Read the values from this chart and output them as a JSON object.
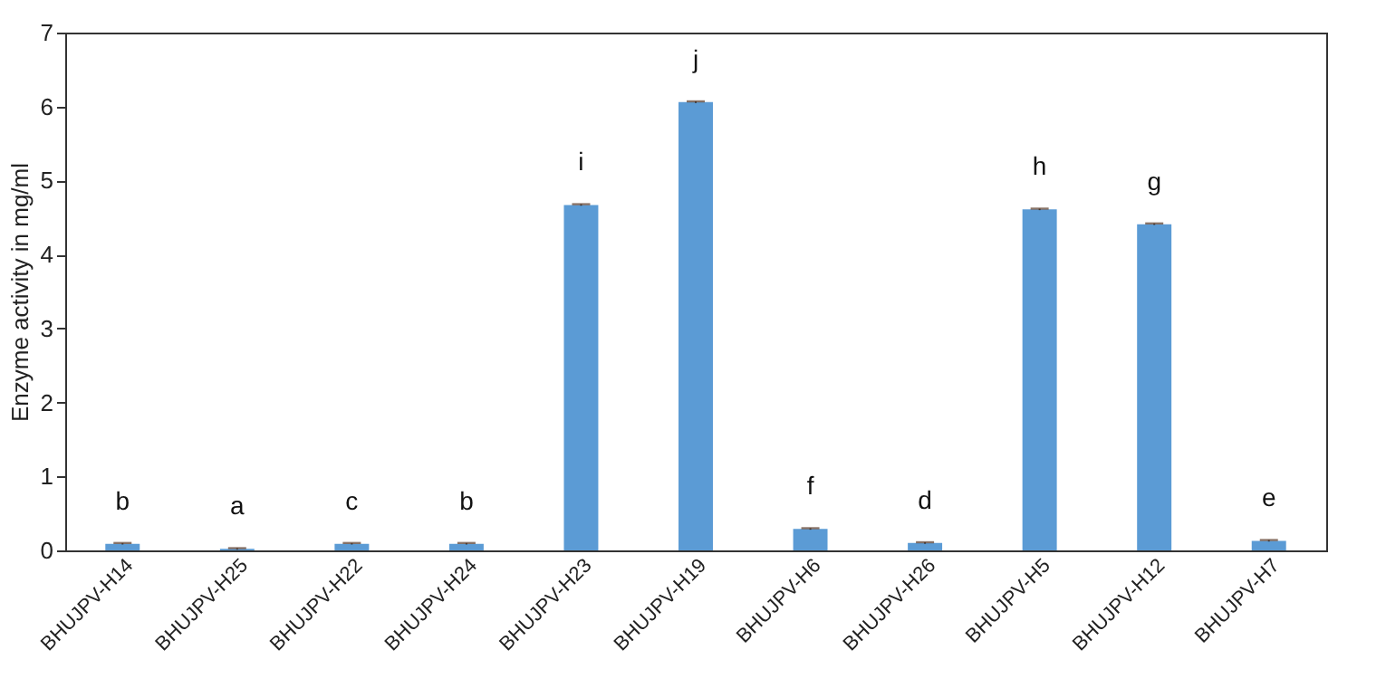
{
  "chart_data": {
    "type": "bar",
    "ylabel": "Enzyme activity in mg/ml",
    "categories": [
      "BHUJPV-H14",
      "BHUJPV-H25",
      "BHUJPV-H22",
      "BHUJPV-H24",
      "BHUJPV-H23",
      "BHUJPV-H19",
      "BHUJPV-H6",
      "BHUJPV-H26",
      "BHUJPV-H5",
      "BHUJPV-H12",
      "BHUJPV-H7"
    ],
    "values": [
      0.09,
      0.02,
      0.09,
      0.09,
      4.67,
      6.06,
      0.29,
      0.1,
      4.61,
      4.41,
      0.13
    ],
    "errors": [
      0.01,
      0.01,
      0.01,
      0.01,
      0.01,
      0.01,
      0.01,
      0.01,
      0.01,
      0.01,
      0.01
    ],
    "color": "#5b9bd5",
    "ylim": [
      0,
      7
    ],
    "yticks": [
      0,
      1,
      2,
      3,
      4,
      5,
      6,
      7
    ],
    "grid": false,
    "annotations": [
      {
        "text": "b",
        "x": "BHUJPV-H14",
        "y": 0.09
      },
      {
        "text": "a",
        "x": "BHUJPV-H25",
        "y": 0.02
      },
      {
        "text": "c",
        "x": "BHUJPV-H22",
        "y": 0.09
      },
      {
        "text": "b",
        "x": "BHUJPV-H24",
        "y": 0.09
      },
      {
        "text": "i",
        "x": "BHUJPV-H23",
        "y": 4.67
      },
      {
        "text": "j",
        "x": "BHUJPV-H19",
        "y": 6.06
      },
      {
        "text": "f",
        "x": "BHUJPV-H6",
        "y": 0.29
      },
      {
        "text": "d",
        "x": "BHUJPV-H26",
        "y": 0.1
      },
      {
        "text": "h",
        "x": "BHUJPV-H5",
        "y": 4.61
      },
      {
        "text": "g",
        "x": "BHUJPV-H12",
        "y": 4.41
      },
      {
        "text": "e",
        "x": "BHUJPV-H7",
        "y": 0.13
      }
    ]
  }
}
